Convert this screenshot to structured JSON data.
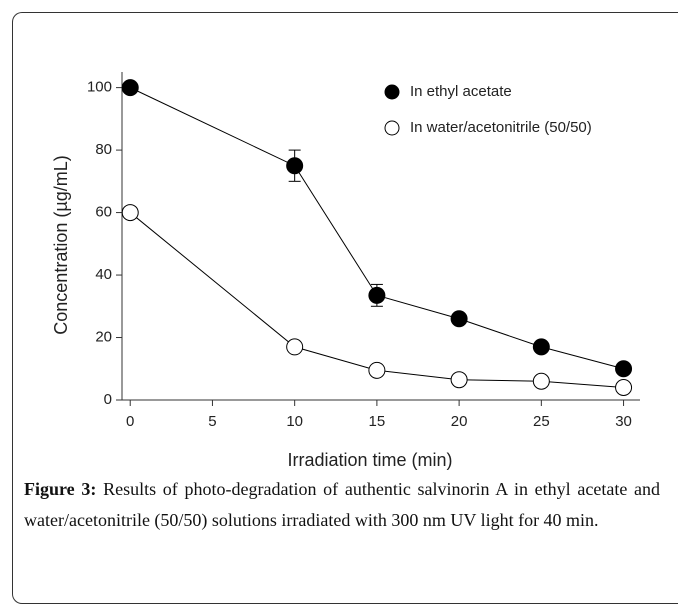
{
  "chart_data": {
    "type": "line",
    "x_label": "Irradiation time (min)",
    "y_label": "Concentration (µg/mL)",
    "x": [
      0,
      10,
      15,
      20,
      25,
      30
    ],
    "series": [
      {
        "name": "In ethyl acetate",
        "color": "#000000",
        "fill": "#000000",
        "values": [
          100,
          75,
          33.5,
          26,
          17,
          10
        ],
        "errors": [
          null,
          5,
          3.5,
          null,
          null,
          null
        ]
      },
      {
        "name": "In water/acetonitrile (50/50)",
        "color": "#000000",
        "fill": "#ffffff",
        "values": [
          60,
          17,
          9.5,
          6.5,
          6,
          4
        ]
      }
    ],
    "xlim": [
      -0.5,
      31
    ],
    "xticks": [
      0,
      5,
      10,
      15,
      20,
      25,
      30
    ],
    "ylim": [
      0,
      105
    ],
    "yticks": [
      0,
      20,
      40,
      60,
      80,
      100
    ],
    "legend": "upper right"
  },
  "caption": {
    "label": "Figure 3:",
    "text": "Results of photo-degradation of authentic salvinorin A in ethyl acetate and water/acetonitrile (50/50) solutions irradiated with 300 nm UV light for 40 min."
  }
}
